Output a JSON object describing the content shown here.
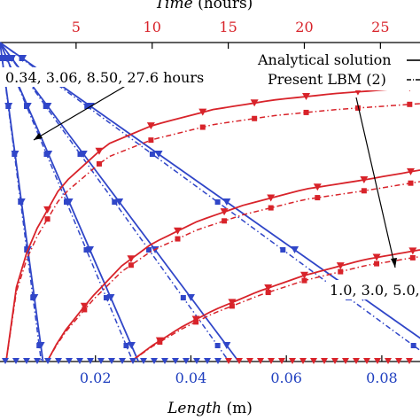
{
  "chart_data": {
    "type": "line",
    "top_axis": {
      "label": "Time",
      "unit": "(hours)",
      "ticks": [
        5,
        10,
        15,
        20,
        25
      ],
      "range": [
        0,
        27.6
      ],
      "color": "#d8232a"
    },
    "bottom_axis": {
      "label": "Length",
      "unit": "(m)",
      "ticks": [
        0.02,
        0.04,
        0.06,
        0.08
      ],
      "tick_labels": [
        "0.02",
        "0.04",
        "0.06",
        "0.08"
      ],
      "range": [
        0,
        0.088
      ],
      "color": "#1f3fbf"
    },
    "y_range": [
      0,
      1
    ],
    "legend": {
      "placement": "top-right",
      "entries": [
        {
          "label": "Analytical solution",
          "style": "solid"
        },
        {
          "label": "Present LBM (2)",
          "style": "dashdot"
        }
      ]
    },
    "annotations": [
      {
        "text": "0.34, 3.06, 8.50, 27.6 hours"
      },
      {
        "text": "1.0, 3.0, 5.0,"
      }
    ],
    "colors": {
      "profiles": "#3046c8",
      "histories": "#d8232a"
    },
    "spatial_profiles": [
      {
        "time_hours": 0.34,
        "front_x": 0.009,
        "values_y0": 1.0
      },
      {
        "time_hours": 3.06,
        "front_x": 0.029,
        "values_y0": 1.0
      },
      {
        "time_hours": 8.5,
        "front_x": 0.05,
        "values_y0": 1.0
      },
      {
        "time_hours": 27.6,
        "front_x": 0.095,
        "values_y0": 1.0
      }
    ],
    "time_histories": [
      {
        "position": 1.0,
        "onset_hours": 0.4,
        "values": [
          [
            0.4,
            0.0
          ],
          [
            1,
            0.22
          ],
          [
            2,
            0.38
          ],
          [
            4,
            0.55
          ],
          [
            7,
            0.68
          ],
          [
            10,
            0.74
          ],
          [
            14,
            0.79
          ],
          [
            18,
            0.82
          ],
          [
            22,
            0.84
          ],
          [
            27.6,
            0.86
          ]
        ]
      },
      {
        "position": 3.0,
        "onset_hours": 3.1,
        "values": [
          [
            3.1,
            0.0
          ],
          [
            4,
            0.08
          ],
          [
            6,
            0.2
          ],
          [
            8,
            0.3
          ],
          [
            10,
            0.37
          ],
          [
            13,
            0.44
          ],
          [
            16,
            0.49
          ],
          [
            20,
            0.54
          ],
          [
            24,
            0.57
          ],
          [
            27.6,
            0.6
          ]
        ]
      },
      {
        "position": 5.0,
        "onset_hours": 8.6,
        "values": [
          [
            8.6,
            0.0
          ],
          [
            10,
            0.05
          ],
          [
            12,
            0.11
          ],
          [
            14,
            0.16
          ],
          [
            17,
            0.22
          ],
          [
            20,
            0.27
          ],
          [
            24,
            0.32
          ],
          [
            27.6,
            0.35
          ]
        ]
      }
    ]
  }
}
